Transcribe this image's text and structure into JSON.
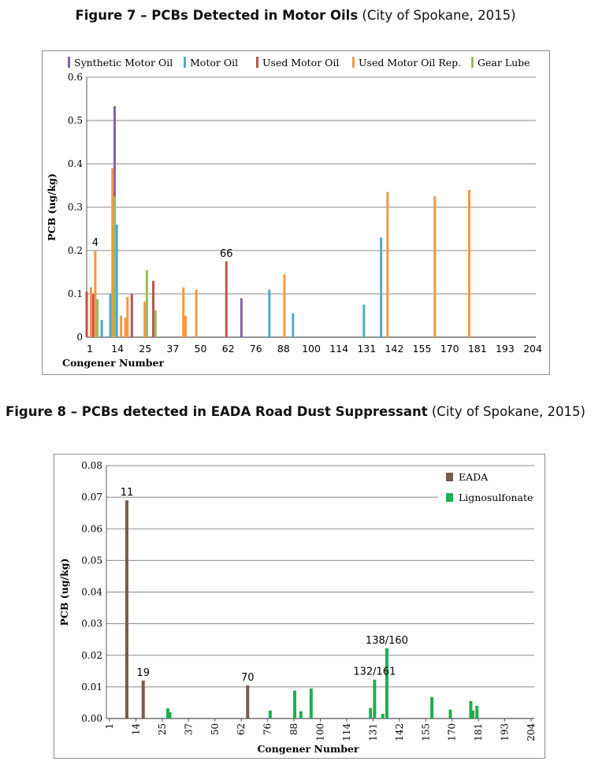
{
  "figure7": {
    "title_bold": "Figure 7 – PCBs Detected in Motor Oils",
    "title_rest": " (City of Spokane, 2015)"
  },
  "figure8": {
    "title_bold": "Figure 8 – PCBs detected in EADA Road Dust Suppressant",
    "title_rest": " (City of Spokane, 2015)"
  },
  "chart_data": [
    {
      "type": "bar",
      "title": "",
      "xlabel": "Congener Number",
      "ylabel": "PCB (ug/kg)",
      "ylim": [
        0,
        0.6
      ],
      "yticks": [
        "0",
        "0.1",
        "0.2",
        "0.3",
        "0.4",
        "0.5",
        "0.6"
      ],
      "xticks": [
        "1",
        "14",
        "25",
        "37",
        "50",
        "62",
        "76",
        "88",
        "100",
        "114",
        "131",
        "142",
        "155",
        "170",
        "181",
        "193",
        "204"
      ],
      "grid": true,
      "legend_position": "top",
      "series": [
        {
          "name": "Synthetic Motor Oil",
          "color": "#7f63a8",
          "points": [
            [
              14,
              0.533
            ],
            [
              73,
              0.09
            ]
          ]
        },
        {
          "name": "Motor Oil",
          "color": "#4bacc6",
          "points": [
            [
              8,
              0.04
            ],
            [
              12,
              0.1
            ],
            [
              15,
              0.26
            ],
            [
              86,
              0.11
            ],
            [
              97,
              0.055
            ],
            [
              130,
              0.075
            ],
            [
              138,
              0.23
            ]
          ]
        },
        {
          "name": "Used Motor Oil",
          "color": "#c0504d",
          "points": [
            [
              1,
              0.105
            ],
            [
              4,
              0.1
            ],
            [
              22,
              0.1
            ],
            [
              32,
              0.13
            ],
            [
              66,
              0.175
            ]
          ]
        },
        {
          "name": "Used Motor Oil Rep.",
          "color": "#f79646",
          "points": [
            [
              3,
              0.115
            ],
            [
              5,
              0.2
            ],
            [
              13,
              0.39
            ],
            [
              17,
              0.05
            ],
            [
              19,
              0.045
            ],
            [
              20,
              0.093
            ],
            [
              28,
              0.082
            ],
            [
              46,
              0.115
            ],
            [
              47,
              0.05
            ],
            [
              52,
              0.11
            ],
            [
              93,
              0.145
            ],
            [
              141,
              0.335
            ],
            [
              163,
              0.325
            ],
            [
              179,
              0.34
            ]
          ]
        },
        {
          "name": "Gear Lube",
          "color": "#9bbb59",
          "points": [
            [
              6,
              0.088
            ],
            [
              14,
              0.325
            ],
            [
              29,
              0.155
            ],
            [
              33,
              0.062
            ]
          ]
        }
      ],
      "annotations": [
        {
          "text": "4",
          "x": 5,
          "y": 0.2
        },
        {
          "text": "66",
          "x": 66,
          "y": 0.175
        }
      ]
    },
    {
      "type": "bar",
      "title": "",
      "xlabel": "Congener Number",
      "ylabel": "PCB (ug/kg)",
      "ylim": [
        0,
        0.08
      ],
      "yticks": [
        "0.00",
        "0.01",
        "0.02",
        "0.03",
        "0.04",
        "0.05",
        "0.06",
        "0.07",
        "0.08"
      ],
      "xticks": [
        "1",
        "14",
        "25",
        "37",
        "50",
        "62",
        "76",
        "88",
        "100",
        "114",
        "131",
        "142",
        "155",
        "170",
        "181",
        "193",
        "204"
      ],
      "grid": true,
      "legend_position": "top-right",
      "series": [
        {
          "name": "EADA",
          "color": "#7b5b4b",
          "points": [
            [
              11,
              0.069
            ],
            [
              19,
              0.012
            ],
            [
              70,
              0.0105
            ]
          ]
        },
        {
          "name": "Lignosulfonate",
          "color": "#1fad4f",
          "points": [
            [
              31,
              0.0032
            ],
            [
              32,
              0.002
            ],
            [
              81,
              0.0025
            ],
            [
              93,
              0.0088
            ],
            [
              96,
              0.0023
            ],
            [
              101,
              0.0095
            ],
            [
              130,
              0.0033
            ],
            [
              132,
              0.0123
            ],
            [
              136,
              0.0015
            ],
            [
              138,
              0.0222
            ],
            [
              160,
              0.0068
            ],
            [
              169,
              0.0028
            ],
            [
              179,
              0.0055
            ],
            [
              180,
              0.0025
            ],
            [
              182,
              0.004
            ]
          ]
        }
      ],
      "annotations": [
        {
          "text": "11",
          "x": 11,
          "y": 0.069
        },
        {
          "text": "19",
          "x": 19,
          "y": 0.012
        },
        {
          "text": "70",
          "x": 70,
          "y": 0.0105
        },
        {
          "text": "132/161",
          "x": 132,
          "y": 0.0123
        },
        {
          "text": "138/160",
          "x": 138,
          "y": 0.0222
        }
      ]
    }
  ]
}
